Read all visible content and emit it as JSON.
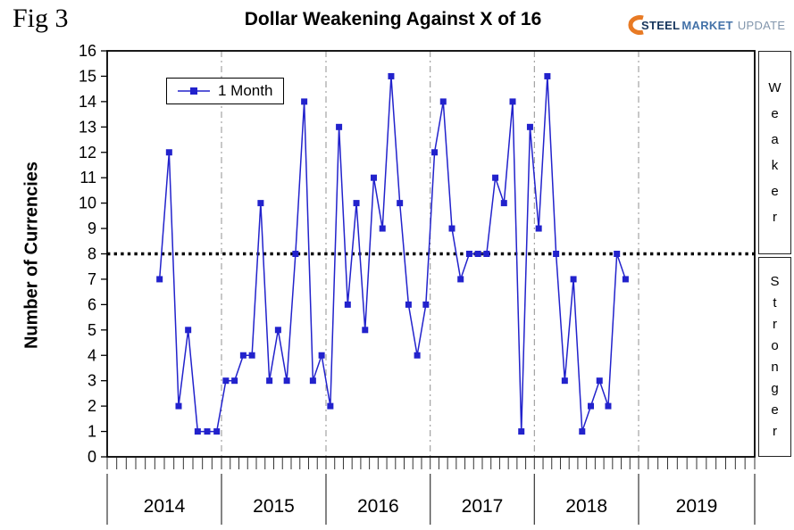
{
  "header": {
    "fig_label": "Fig 3",
    "title": "Dollar Weakening Against X of 16",
    "logo": {
      "steel": "STEEL",
      "market": "MARKET",
      "update": "UPDATE"
    }
  },
  "legend": {
    "label": "1 Month"
  },
  "side": {
    "upper": "Weaker",
    "lower": "Stronger"
  },
  "colors": {
    "series_line": "#2222CC",
    "marker": "#2222CC",
    "reference": "#000000",
    "grid": "#909090",
    "axis": "#000000",
    "logo_orange": "#E87A24",
    "logo_dark_blue": "#17365D",
    "logo_mid_blue": "#4472A8",
    "logo_gray_blue": "#8296AC"
  },
  "chart_data": {
    "type": "line",
    "title": "Dollar Weakening Against X of 16",
    "ylabel": "Number of Currencies",
    "ylim": [
      0,
      16
    ],
    "ytick_step": 1,
    "x_years": [
      "2014",
      "2015",
      "2016",
      "2017",
      "2018",
      "2019"
    ],
    "reference_line": 8,
    "legend_position": "top-left",
    "grid": "vertical-year-dashdot",
    "series": [
      {
        "name": "1 Month",
        "start": "2014-06",
        "frequency": "monthly",
        "values": [
          7,
          12,
          2,
          5,
          1,
          1,
          1,
          3,
          3,
          4,
          4,
          10,
          3,
          5,
          3,
          8,
          14,
          3,
          4,
          2,
          13,
          6,
          10,
          5,
          11,
          9,
          15,
          10,
          6,
          4,
          6,
          12,
          14,
          9,
          7,
          8,
          8,
          8,
          11,
          10,
          14,
          1,
          13,
          9,
          15,
          8,
          3,
          7,
          1,
          2,
          3,
          2,
          8,
          7
        ]
      }
    ]
  }
}
